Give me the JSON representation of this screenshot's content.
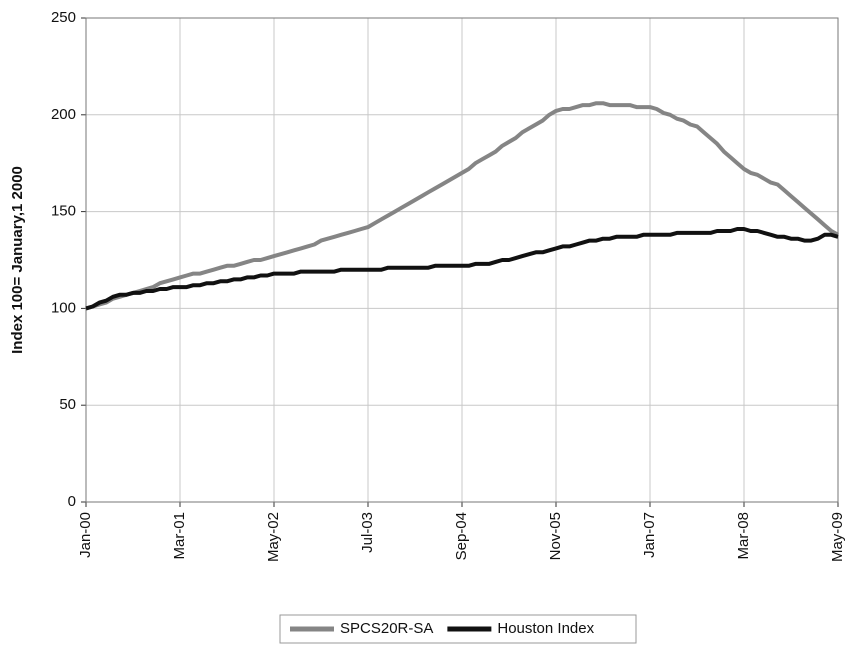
{
  "chart_data": {
    "type": "line",
    "y_label": "Index 100= January,1 2000",
    "categories": [
      "Jan-00",
      null,
      null,
      null,
      null,
      null,
      null,
      null,
      null,
      null,
      null,
      null,
      null,
      null,
      "Mar-01",
      null,
      null,
      null,
      null,
      null,
      null,
      null,
      null,
      null,
      null,
      null,
      null,
      null,
      "May-02",
      null,
      null,
      null,
      null,
      null,
      null,
      null,
      null,
      null,
      null,
      null,
      null,
      null,
      "Jul-03",
      null,
      null,
      null,
      null,
      null,
      null,
      null,
      null,
      null,
      null,
      null,
      null,
      null,
      "Sep-04",
      null,
      null,
      null,
      null,
      null,
      null,
      null,
      null,
      null,
      null,
      null,
      null,
      null,
      "Nov-05",
      null,
      null,
      null,
      null,
      null,
      null,
      null,
      null,
      null,
      null,
      null,
      null,
      null,
      "Jan-07",
      null,
      null,
      null,
      null,
      null,
      null,
      null,
      null,
      null,
      null,
      null,
      null,
      null,
      "Mar-08",
      null,
      null,
      null,
      null,
      null,
      null,
      null,
      null,
      null,
      null,
      null,
      null,
      null,
      "May-09"
    ],
    "series": [
      {
        "name": "SPCS20R-SA",
        "color": "#858585",
        "values": [
          100,
          101,
          102,
          103,
          105,
          106,
          107,
          108,
          109,
          110,
          111,
          113,
          114,
          115,
          116,
          117,
          118,
          118,
          119,
          120,
          121,
          122,
          122,
          123,
          124,
          125,
          125,
          126,
          127,
          128,
          129,
          130,
          131,
          132,
          133,
          135,
          136,
          137,
          138,
          139,
          140,
          141,
          142,
          144,
          146,
          148,
          150,
          152,
          154,
          156,
          158,
          160,
          162,
          164,
          166,
          168,
          170,
          172,
          175,
          177,
          179,
          181,
          184,
          186,
          188,
          191,
          193,
          195,
          197,
          200,
          202,
          203,
          203,
          204,
          205,
          205,
          206,
          206,
          205,
          205,
          205,
          205,
          204,
          204,
          204,
          203,
          201,
          200,
          198,
          197,
          195,
          194,
          191,
          188,
          185,
          181,
          178,
          175,
          172,
          170,
          169,
          167,
          165,
          164,
          161,
          158,
          155,
          152,
          149,
          146,
          143,
          140,
          138
        ]
      },
      {
        "name": "Houston Index",
        "color": "#111111",
        "values": [
          100,
          101,
          103,
          104,
          106,
          107,
          107,
          108,
          108,
          109,
          109,
          110,
          110,
          111,
          111,
          111,
          112,
          112,
          113,
          113,
          114,
          114,
          115,
          115,
          116,
          116,
          117,
          117,
          118,
          118,
          118,
          118,
          119,
          119,
          119,
          119,
          119,
          119,
          120,
          120,
          120,
          120,
          120,
          120,
          120,
          121,
          121,
          121,
          121,
          121,
          121,
          121,
          122,
          122,
          122,
          122,
          122,
          122,
          123,
          123,
          123,
          124,
          125,
          125,
          126,
          127,
          128,
          129,
          129,
          130,
          131,
          132,
          132,
          133,
          134,
          135,
          135,
          136,
          136,
          137,
          137,
          137,
          137,
          138,
          138,
          138,
          138,
          138,
          139,
          139,
          139,
          139,
          139,
          139,
          140,
          140,
          140,
          141,
          141,
          140,
          140,
          139,
          138,
          137,
          137,
          136,
          136,
          135,
          135,
          136,
          138,
          138,
          137
        ]
      }
    ],
    "ylim": [
      0,
      250
    ],
    "yticks": [
      0,
      50,
      100,
      150,
      200,
      250
    ],
    "grid": true,
    "legend": "bottom"
  }
}
